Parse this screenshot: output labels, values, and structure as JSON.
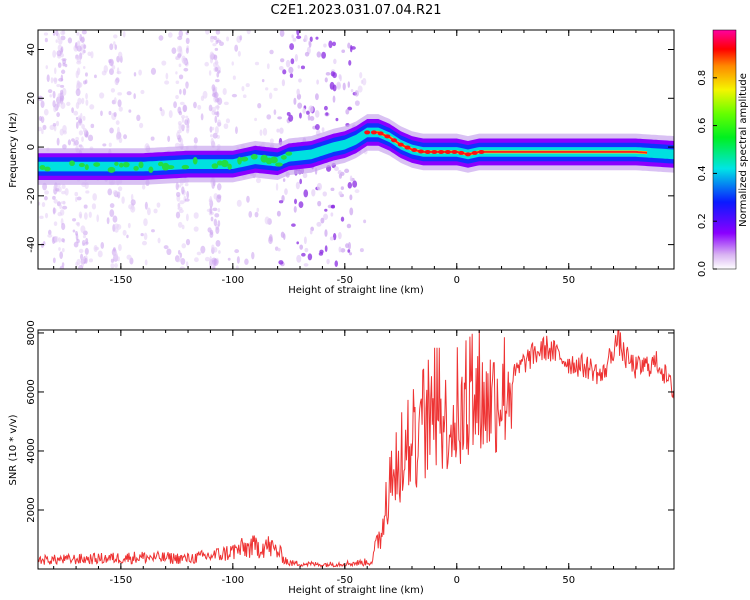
{
  "title": "C2E1.2023.031.07.04.R21",
  "chart_data": [
    {
      "type": "heatmap",
      "name": "spectrogram",
      "xlabel": "Height of straight line (km)",
      "ylabel": "Frequency (Hz)",
      "xlim": [
        -187,
        97
      ],
      "ylim": [
        -50,
        48
      ],
      "xticks": [
        -150,
        -100,
        -50,
        0,
        50
      ],
      "yticks": [
        -40,
        -20,
        0,
        20,
        40
      ],
      "colorbar": {
        "label": "Normalized spectral amplitude",
        "range": [
          0,
          1
        ],
        "ticks": [
          0.0,
          0.2,
          0.4,
          0.6,
          0.8
        ]
      },
      "ridge": {
        "x": [
          -187,
          -170,
          -150,
          -140,
          -120,
          -100,
          -90,
          -80,
          -75,
          -65,
          -55,
          -50,
          -45,
          -40,
          -35,
          -30,
          -25,
          -20,
          -15,
          -10,
          -5,
          0,
          5,
          10,
          20,
          40,
          60,
          80,
          97
        ],
        "y": [
          -8,
          -8,
          -8,
          -8,
          -7,
          -7,
          -5,
          -6,
          -4,
          -3,
          0,
          1,
          3,
          6,
          6,
          4,
          1,
          -1,
          -2,
          -2,
          -2,
          -2,
          -3,
          -2,
          -2,
          -2,
          -2,
          -2,
          -3
        ]
      }
    },
    {
      "type": "line",
      "name": "snr",
      "xlabel": "Height of straight line (km)",
      "ylabel": "SNR (10 * v/v)",
      "xlim": [
        -187,
        97
      ],
      "ylim": [
        0,
        8100
      ],
      "xticks": [
        -150,
        -100,
        -50,
        0,
        50
      ],
      "yticks": [
        2000,
        4000,
        6000,
        8000
      ],
      "color": "#ee3333",
      "envelope": {
        "x": [
          -187,
          -160,
          -140,
          -120,
          -105,
          -95,
          -85,
          -80,
          -75,
          -60,
          -45,
          -38,
          -33,
          -30,
          -25,
          -20,
          -15,
          -10,
          -5,
          0,
          5,
          10,
          20,
          30,
          35,
          40,
          50,
          60,
          65,
          70,
          72,
          75,
          80,
          90,
          97
        ],
        "y": [
          300,
          350,
          400,
          350,
          500,
          700,
          800,
          600,
          200,
          150,
          200,
          250,
          1500,
          2500,
          3500,
          4000,
          4500,
          5000,
          5000,
          5000,
          5200,
          5500,
          6000,
          7000,
          7300,
          7500,
          7000,
          6800,
          6500,
          7500,
          7800,
          7200,
          6800,
          7000,
          6000
        ]
      }
    }
  ]
}
